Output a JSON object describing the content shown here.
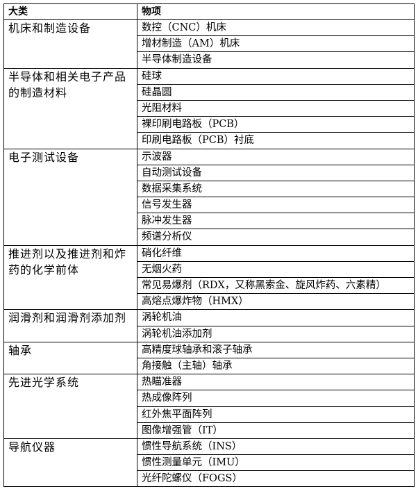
{
  "table": {
    "header": [
      "大类",
      "物项"
    ],
    "groups": [
      {
        "category": "机床和制造设备",
        "items": [
          "数控（CNC）机床",
          "增材制造（AM）机床",
          "半导体制造设备"
        ]
      },
      {
        "category": "半导体和相关电子产品的制造材料",
        "items": [
          "硅球",
          "硅晶圆",
          "光阻材料",
          "裸印刷电路板（PCB）",
          "印刷电路板（PCB）衬底"
        ]
      },
      {
        "category": "电子测试设备",
        "items": [
          "示波器",
          "自动测试设备",
          "数据采集系统",
          "信号发生器",
          "脉冲发生器",
          "频谱分析仪"
        ]
      },
      {
        "category": "推进剂以及推进剂和炸药的化学前体",
        "items": [
          "硝化纤维",
          "无烟火药",
          "常见易爆剂（RDX，又称黑索金、旋风炸药、六素精）",
          "高熔点爆炸物（HMX）"
        ]
      },
      {
        "category": "润滑剂和润滑剂添加剂",
        "items": [
          "涡轮机油",
          "涡轮机油添加剂"
        ]
      },
      {
        "category": "轴承",
        "items": [
          "高精度球轴承和滚子轴承",
          "角接触（主轴）轴承"
        ]
      },
      {
        "category": "先进光学系统",
        "items": [
          "热瞄准器",
          "热成像阵列",
          "红外焦平面阵列",
          "图像增强管（IT）"
        ]
      },
      {
        "category": "导航仪器",
        "items": [
          "惯性导航系统（INS）",
          "惯性测量单元（IMU）",
          "光纤陀螺仪（FOGS）"
        ]
      }
    ]
  }
}
